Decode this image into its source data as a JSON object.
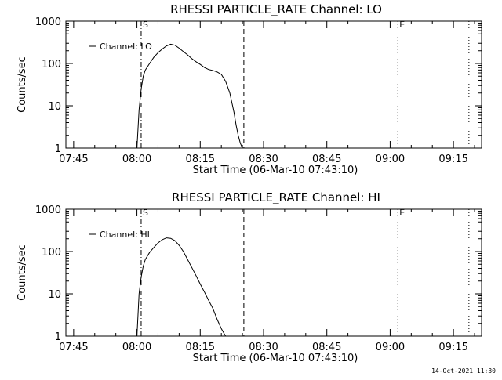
{
  "footer": {
    "date_stamp": "14-Oct-2021 11:30"
  },
  "chart_data": [
    {
      "type": "line",
      "title": "RHESSI PARTICLE_RATE Channel: LO",
      "xlabel": "Start Time (06-Mar-10 07:43:10)",
      "ylabel": "Counts/sec",
      "x_units": "time (HH:MM)",
      "xlim": [
        "07:43:10",
        "09:21:40"
      ],
      "ylim": [
        1,
        1000
      ],
      "y_scale": "log",
      "x_ticks": [
        "07:45",
        "08:00",
        "08:15",
        "08:30",
        "08:45",
        "09:00",
        "09:15"
      ],
      "y_ticks": [
        "1",
        "10",
        "100",
        "1000"
      ],
      "grid": false,
      "legend": {
        "position": "top-left",
        "entries": [
          "Channel: LO"
        ]
      },
      "markers": [
        {
          "label": "S",
          "time": "08:01:00",
          "style": "dash-dot"
        },
        {
          "label": "E",
          "time": "09:01:50",
          "style": "dotted"
        }
      ],
      "extra_lines": [
        {
          "time": "08:25:20",
          "style": "dashed"
        },
        {
          "time": "09:18:40",
          "style": "dotted"
        }
      ],
      "series": [
        {
          "name": "Channel: LO",
          "x": [
            "08:00:00",
            "08:00:30",
            "08:01:00",
            "08:01:30",
            "08:02:00",
            "08:03:00",
            "08:04:00",
            "08:05:00",
            "08:06:00",
            "08:07:00",
            "08:08:00",
            "08:09:00",
            "08:10:00",
            "08:11:00",
            "08:12:00",
            "08:13:00",
            "08:14:00",
            "08:15:00",
            "08:16:00",
            "08:17:00",
            "08:18:00",
            "08:19:00",
            "08:20:00",
            "08:21:00",
            "08:22:00",
            "08:23:00",
            "08:23:30",
            "08:24:00",
            "08:24:30",
            "08:25:00"
          ],
          "y": [
            1,
            8,
            25,
            50,
            70,
            100,
            140,
            180,
            220,
            260,
            285,
            270,
            230,
            190,
            160,
            130,
            110,
            95,
            80,
            72,
            68,
            63,
            55,
            38,
            20,
            7,
            3.5,
            2,
            1.3,
            1
          ]
        }
      ]
    },
    {
      "type": "line",
      "title": "RHESSI PARTICLE_RATE Channel: HI",
      "xlabel": "Start Time (06-Mar-10 07:43:10)",
      "ylabel": "Counts/sec",
      "x_units": "time (HH:MM)",
      "xlim": [
        "07:43:10",
        "09:21:40"
      ],
      "ylim": [
        1,
        1000
      ],
      "y_scale": "log",
      "x_ticks": [
        "07:45",
        "08:00",
        "08:15",
        "08:30",
        "08:45",
        "09:00",
        "09:15"
      ],
      "y_ticks": [
        "1",
        "10",
        "100",
        "1000"
      ],
      "grid": false,
      "legend": {
        "position": "top-left",
        "entries": [
          "Channel: HI"
        ]
      },
      "markers": [
        {
          "label": "S",
          "time": "08:01:00",
          "style": "dash-dot"
        },
        {
          "label": "E",
          "time": "09:01:50",
          "style": "dotted"
        }
      ],
      "extra_lines": [
        {
          "time": "08:25:20",
          "style": "dashed"
        },
        {
          "time": "09:18:40",
          "style": "dotted"
        }
      ],
      "series": [
        {
          "name": "Channel: HI",
          "x": [
            "08:00:00",
            "08:00:30",
            "08:01:00",
            "08:01:30",
            "08:02:00",
            "08:03:00",
            "08:04:00",
            "08:05:00",
            "08:06:00",
            "08:07:00",
            "08:08:00",
            "08:09:00",
            "08:10:00",
            "08:11:00",
            "08:12:00",
            "08:13:00",
            "08:14:00",
            "08:15:00",
            "08:16:00",
            "08:17:00",
            "08:18:00",
            "08:19:00",
            "08:20:00",
            "08:21:00"
          ],
          "y": [
            1,
            10,
            25,
            45,
            65,
            95,
            125,
            160,
            190,
            210,
            205,
            180,
            140,
            100,
            65,
            42,
            27,
            17,
            11,
            7,
            4.5,
            2.5,
            1.5,
            1
          ]
        }
      ]
    }
  ]
}
